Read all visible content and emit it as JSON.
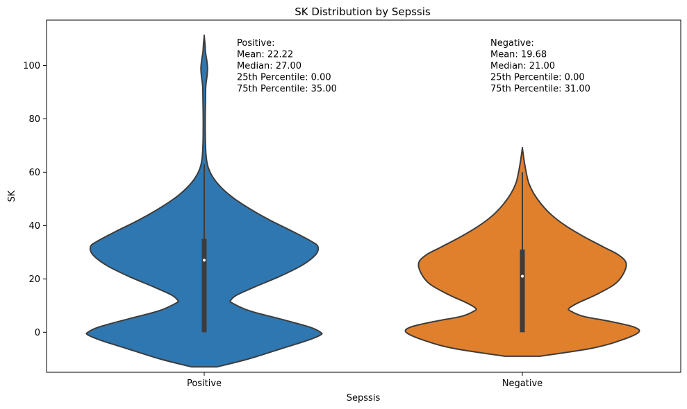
{
  "chart_data": {
    "type": "violin",
    "title": "SK Distribution by Sepssis",
    "xlabel": "Sepssis",
    "ylabel": "SK",
    "categories": [
      "Positive",
      "Negative"
    ],
    "ylim": [
      -15,
      117
    ],
    "yticks": [
      0,
      20,
      40,
      60,
      80,
      100
    ],
    "grid": false,
    "colors": {
      "Positive": "#2f77b1",
      "Negative": "#e0802c",
      "outline": "#3c3c3c",
      "box": "#3c3c3c",
      "median_marker": "#ffffff"
    },
    "groups": [
      {
        "name": "Positive",
        "stats": {
          "mean": 22.22,
          "median": 27.0,
          "q1": 0.0,
          "q3": 35.0,
          "whisker_low": 0,
          "whisker_high": 63
        },
        "kde_range": [
          -13,
          111
        ],
        "density_profile": [
          [
            -13,
            0.1
          ],
          [
            -10,
            0.35
          ],
          [
            -6,
            0.62
          ],
          [
            -3,
            0.82
          ],
          [
            -1,
            0.92
          ],
          [
            0,
            0.92
          ],
          [
            2,
            0.83
          ],
          [
            5,
            0.6
          ],
          [
            8,
            0.36
          ],
          [
            11,
            0.22
          ],
          [
            12,
            0.21
          ],
          [
            14,
            0.26
          ],
          [
            17,
            0.4
          ],
          [
            21,
            0.6
          ],
          [
            25,
            0.77
          ],
          [
            29,
            0.88
          ],
          [
            32,
            0.9
          ],
          [
            34,
            0.85
          ],
          [
            38,
            0.69
          ],
          [
            42,
            0.52
          ],
          [
            46,
            0.37
          ],
          [
            50,
            0.24
          ],
          [
            54,
            0.14
          ],
          [
            58,
            0.07
          ],
          [
            62,
            0.03
          ],
          [
            66,
            0.015
          ],
          [
            72,
            0.009
          ],
          [
            80,
            0.008
          ],
          [
            87,
            0.01
          ],
          [
            92,
            0.012
          ],
          [
            96,
            0.022
          ],
          [
            99,
            0.026
          ],
          [
            102,
            0.02
          ],
          [
            105,
            0.01
          ],
          [
            108,
            0.006
          ],
          [
            111,
            0.0
          ]
        ],
        "annotation": [
          "Positive:",
          "Mean: 22.22",
          "Median: 27.00",
          "25th Percentile: 0.00",
          "75th Percentile: 35.00"
        ]
      },
      {
        "name": "Negative",
        "stats": {
          "mean": 19.68,
          "median": 21.0,
          "q1": 0.0,
          "q3": 31.0,
          "whisker_low": 0,
          "whisker_high": 60
        },
        "kde_range": [
          -9,
          69
        ],
        "density_profile": [
          [
            -9,
            0.14
          ],
          [
            -6,
            0.55
          ],
          [
            -3,
            0.78
          ],
          [
            0,
            0.92
          ],
          [
            2,
            0.88
          ],
          [
            4,
            0.7
          ],
          [
            6,
            0.48
          ],
          [
            8,
            0.38
          ],
          [
            9,
            0.37
          ],
          [
            11,
            0.44
          ],
          [
            14,
            0.58
          ],
          [
            18,
            0.73
          ],
          [
            22,
            0.8
          ],
          [
            26,
            0.82
          ],
          [
            29,
            0.76
          ],
          [
            32,
            0.64
          ],
          [
            36,
            0.48
          ],
          [
            40,
            0.34
          ],
          [
            44,
            0.23
          ],
          [
            48,
            0.15
          ],
          [
            52,
            0.09
          ],
          [
            56,
            0.05
          ],
          [
            60,
            0.03
          ],
          [
            64,
            0.015
          ],
          [
            67,
            0.006
          ],
          [
            69,
            0.0
          ]
        ],
        "annotation": [
          "Negative:",
          "Mean: 19.68",
          "Median: 21.00",
          "25th Percentile: 0.00",
          "75th Percentile: 31.00"
        ]
      }
    ]
  }
}
